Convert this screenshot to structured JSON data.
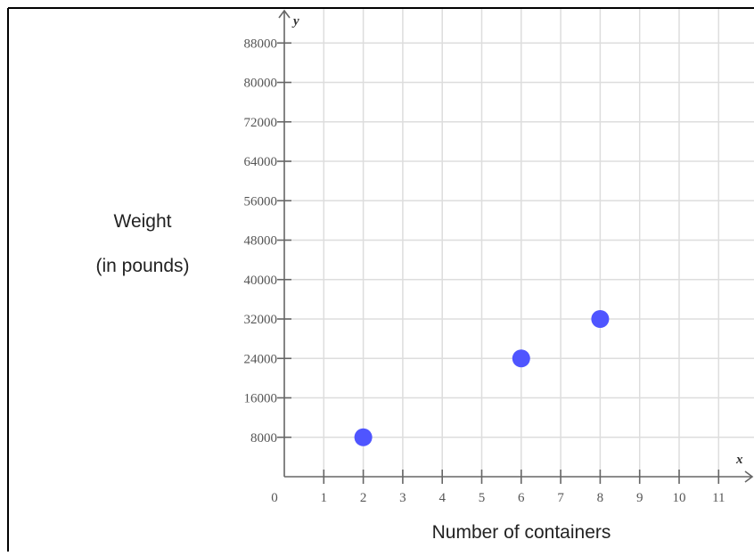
{
  "chart_data": {
    "type": "scatter",
    "x_axis_name": "x",
    "y_axis_name": "y",
    "ylabel_lines": [
      "Weight",
      "(in pounds)"
    ],
    "xlabel": "Number of containers",
    "xlim": [
      0,
      11.8
    ],
    "ylim": [
      0,
      92000
    ],
    "x_ticks": [
      0,
      1,
      2,
      3,
      4,
      5,
      6,
      7,
      8,
      9,
      10,
      11
    ],
    "y_ticks": [
      8000,
      16000,
      24000,
      32000,
      40000,
      48000,
      56000,
      64000,
      72000,
      80000,
      88000
    ],
    "grid": true,
    "points": [
      {
        "x": 2,
        "y": 8000
      },
      {
        "x": 6,
        "y": 24000
      },
      {
        "x": 8,
        "y": 32000
      }
    ],
    "point_color": "#4f55ff",
    "grid_color": "#dddddd",
    "axis_color": "#666666"
  }
}
